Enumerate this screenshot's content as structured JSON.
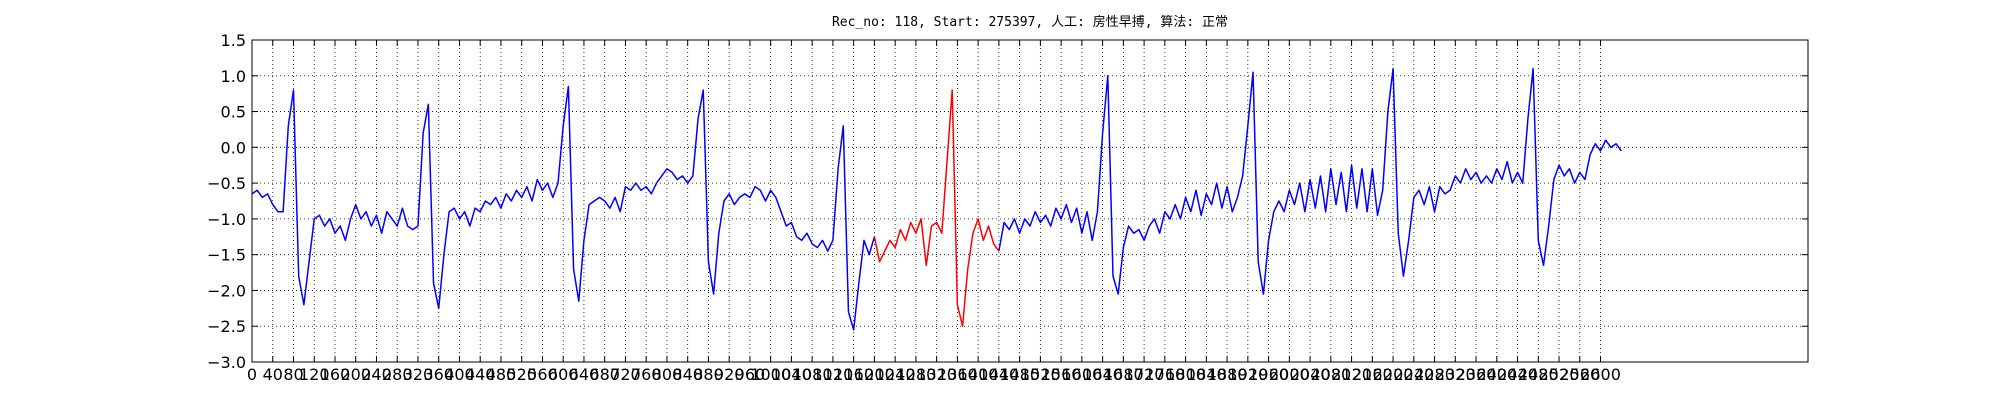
{
  "chart_data": {
    "type": "line",
    "title": "Rec_no: 118, Start: 275397, 人工: 房性早搏, 算法: 正常",
    "x": [
      0,
      10,
      20,
      30,
      40,
      50,
      60,
      70,
      80,
      90,
      100,
      110,
      120,
      130,
      140,
      150,
      160,
      170,
      180,
      190,
      200,
      210,
      220,
      230,
      240,
      250,
      260,
      270,
      280,
      290,
      300,
      310,
      320,
      330,
      340,
      350,
      360,
      370,
      380,
      390,
      400,
      410,
      420,
      430,
      440,
      450,
      460,
      470,
      480,
      490,
      500,
      510,
      520,
      530,
      540,
      550,
      560,
      570,
      580,
      590,
      600,
      610,
      620,
      630,
      640,
      650,
      660,
      670,
      680,
      690,
      700,
      710,
      720,
      730,
      740,
      750,
      760,
      770,
      780,
      790,
      800,
      810,
      820,
      830,
      840,
      850,
      860,
      870,
      880,
      890,
      900,
      910,
      920,
      930,
      940,
      950,
      960,
      970,
      980,
      990,
      1000,
      1010,
      1020,
      1030,
      1040,
      1050,
      1060,
      1070,
      1080,
      1090,
      1100,
      1110,
      1120,
      1130,
      1140,
      1150,
      1160,
      1170,
      1180,
      1190,
      1200,
      1210,
      1220,
      1230,
      1240,
      1250,
      1260,
      1270,
      1280,
      1290,
      1300,
      1310,
      1320,
      1330,
      1340,
      1350,
      1360,
      1370,
      1380,
      1390,
      1400,
      1410,
      1420,
      1430,
      1440,
      1450,
      1460,
      1470,
      1480,
      1490,
      1500,
      1510,
      1520,
      1530,
      1540,
      1550,
      1560,
      1570,
      1580,
      1590,
      1600,
      1610,
      1620,
      1630,
      1640,
      1650,
      1660,
      1670,
      1680,
      1690,
      1700,
      1710,
      1720,
      1730,
      1740,
      1750,
      1760,
      1770,
      1780,
      1790,
      1800,
      1810,
      1820,
      1830,
      1840,
      1850,
      1860,
      1870,
      1880,
      1890,
      1900,
      1910,
      1920,
      1930,
      1940,
      1950,
      1960,
      1970,
      1980,
      1990,
      2000,
      2010,
      2020,
      2030,
      2040,
      2050,
      2060,
      2070,
      2080,
      2090,
      2100,
      2110,
      2120,
      2130,
      2140,
      2150,
      2160,
      2170,
      2180,
      2190,
      2200,
      2210,
      2220,
      2230,
      2240,
      2250,
      2260,
      2270,
      2280,
      2290,
      2300,
      2310,
      2320,
      2330,
      2340,
      2350,
      2360,
      2370,
      2380,
      2390,
      2400,
      2410,
      2420,
      2430,
      2440,
      2450,
      2460,
      2470,
      2480,
      2490,
      2500,
      2510,
      2520,
      2530,
      2540,
      2550,
      2560,
      2570,
      2580,
      2590,
      2600,
      2610,
      2620,
      2630,
      2640
    ],
    "series": [
      {
        "color": "#0000ff",
        "values": [
          -0.65,
          -0.6,
          -0.7,
          -0.65,
          -0.8,
          -0.9,
          -0.9,
          0.3,
          0.8,
          -1.8,
          -2.2,
          -1.6,
          -1.0,
          -0.95,
          -1.1,
          -1.0,
          -1.2,
          -1.1,
          -1.3,
          -1.0,
          -0.8,
          -1.0,
          -0.9,
          -1.1,
          -0.95,
          -1.2,
          -0.9,
          -1.0,
          -1.1,
          -0.85,
          -1.1,
          -1.15,
          -1.1,
          0.2,
          0.6,
          -1.9,
          -2.25,
          -1.5,
          -0.9,
          -0.85,
          -1.0,
          -0.9,
          -1.1,
          -0.85,
          -0.9,
          -0.75,
          -0.8,
          -0.7,
          -0.85,
          -0.65,
          -0.75,
          -0.6,
          -0.7,
          -0.55,
          -0.75,
          -0.45,
          -0.6,
          -0.5,
          -0.7,
          -0.5,
          0.3,
          0.85,
          -1.7,
          -2.15,
          -1.3,
          -0.8,
          -0.75,
          -0.7,
          -0.75,
          -0.85,
          -0.7,
          -0.9,
          -0.55,
          -0.6,
          -0.5,
          -0.6,
          -0.55,
          -0.65,
          -0.5,
          -0.4,
          -0.3,
          -0.35,
          -0.45,
          -0.4,
          -0.5,
          -0.4,
          0.4,
          0.8,
          -1.6,
          -2.05,
          -1.2,
          -0.75,
          -0.65,
          -0.8,
          -0.7,
          -0.65,
          -0.7,
          -0.55,
          -0.6,
          -0.75,
          -0.6,
          -0.7,
          -0.9,
          -1.1,
          -1.05,
          -1.25,
          -1.3,
          -1.2,
          -1.35,
          -1.4,
          -1.3,
          -1.45,
          -1.3,
          -0.3,
          0.3,
          -2.3,
          -2.55,
          -1.9,
          -1.3,
          -1.5,
          -1.25,
          null,
          null,
          null,
          null,
          null,
          null,
          null,
          null,
          null,
          null,
          null,
          null,
          null,
          null,
          null,
          null,
          null,
          null,
          null,
          null,
          null,
          null,
          null,
          -1.45,
          -1.05,
          -1.15,
          -1.0,
          -1.2,
          -1.0,
          -1.1,
          -0.9,
          -1.05,
          -0.95,
          -1.1,
          -0.85,
          -1.0,
          -0.8,
          -1.05,
          -0.85,
          -1.2,
          -0.9,
          -1.3,
          -0.9,
          0.2,
          1.0,
          -1.8,
          -2.05,
          -1.4,
          -1.1,
          -1.2,
          -1.15,
          -1.3,
          -1.1,
          -1.0,
          -1.2,
          -0.9,
          -1.0,
          -0.8,
          -1.0,
          -0.7,
          -0.9,
          -0.6,
          -0.95,
          -0.65,
          -0.8,
          -0.5,
          -0.85,
          -0.55,
          -0.9,
          -0.7,
          -0.4,
          0.3,
          1.05,
          -1.6,
          -2.05,
          -1.3,
          -0.9,
          -0.75,
          -0.9,
          -0.6,
          -0.8,
          -0.5,
          -0.9,
          -0.45,
          -0.85,
          -0.4,
          -0.9,
          -0.3,
          -0.8,
          -0.35,
          -0.9,
          -0.25,
          -0.85,
          -0.3,
          -0.9,
          -0.3,
          -0.95,
          -0.6,
          0.5,
          1.1,
          -1.2,
          -1.8,
          -1.3,
          -0.7,
          -0.6,
          -0.8,
          -0.55,
          -0.9,
          -0.55,
          -0.65,
          -0.6,
          -0.4,
          -0.5,
          -0.3,
          -0.45,
          -0.35,
          -0.5,
          -0.4,
          -0.5,
          -0.3,
          -0.45,
          -0.2,
          -0.5,
          -0.35,
          -0.5,
          0.4,
          1.1,
          -1.3,
          -1.65,
          -1.1,
          -0.45,
          -0.25,
          -0.4,
          -0.3,
          -0.5,
          -0.35,
          -0.45,
          -0.1,
          0.05,
          -0.05,
          0.1,
          0.0,
          0.05,
          -0.05
        ]
      },
      {
        "color": "#ff0000",
        "values": [
          null,
          null,
          null,
          null,
          null,
          null,
          null,
          null,
          null,
          null,
          null,
          null,
          null,
          null,
          null,
          null,
          null,
          null,
          null,
          null,
          null,
          null,
          null,
          null,
          null,
          null,
          null,
          null,
          null,
          null,
          null,
          null,
          null,
          null,
          null,
          null,
          null,
          null,
          null,
          null,
          null,
          null,
          null,
          null,
          null,
          null,
          null,
          null,
          null,
          null,
          null,
          null,
          null,
          null,
          null,
          null,
          null,
          null,
          null,
          null,
          null,
          null,
          null,
          null,
          null,
          null,
          null,
          null,
          null,
          null,
          null,
          null,
          null,
          null,
          null,
          null,
          null,
          null,
          null,
          null,
          null,
          null,
          null,
          null,
          null,
          null,
          null,
          null,
          null,
          null,
          null,
          null,
          null,
          null,
          null,
          null,
          null,
          null,
          null,
          null,
          null,
          null,
          null,
          null,
          null,
          null,
          null,
          null,
          null,
          null,
          null,
          null,
          null,
          null,
          null,
          null,
          null,
          null,
          null,
          null,
          -1.25,
          -1.6,
          -1.45,
          -1.3,
          -1.4,
          -1.15,
          -1.3,
          -1.05,
          -1.2,
          -1.0,
          -1.65,
          -1.1,
          -1.05,
          -1.2,
          -0.2,
          0.8,
          -2.2,
          -2.5,
          -1.7,
          -1.2,
          -1.0,
          -1.3,
          -1.1,
          -1.35,
          -1.45,
          null,
          null,
          null,
          null,
          null,
          null,
          null,
          null,
          null,
          null,
          null,
          null,
          null,
          null,
          null,
          null,
          null,
          null,
          null,
          null,
          null,
          null,
          null,
          null,
          null,
          null,
          null,
          null,
          null,
          null,
          null,
          null,
          null,
          null,
          null,
          null,
          null,
          null,
          null,
          null,
          null,
          null,
          null,
          null,
          null,
          null,
          null,
          null,
          null,
          null,
          null,
          null,
          null,
          null,
          null,
          null,
          null,
          null,
          null,
          null,
          null,
          null,
          null,
          null,
          null,
          null,
          null,
          null,
          null,
          null,
          null,
          null,
          null,
          null,
          null,
          null,
          null,
          null,
          null,
          null,
          null,
          null,
          null,
          null,
          null,
          null,
          null,
          null,
          null,
          null,
          null,
          null,
          null,
          null,
          null,
          null,
          null,
          null,
          null,
          null,
          null,
          null,
          null,
          null,
          null,
          null,
          null,
          null,
          null,
          null,
          null,
          null,
          null,
          null,
          null,
          null,
          null,
          null,
          null,
          null
        ]
      }
    ],
    "xlim": [
      0,
      3000
    ],
    "xticks": [
      0,
      40,
      80,
      120,
      160,
      200,
      240,
      280,
      320,
      360,
      400,
      440,
      480,
      520,
      560,
      600,
      640,
      680,
      720,
      760,
      800,
      840,
      880,
      920,
      960,
      1000,
      1040,
      1080,
      1120,
      1160,
      1200,
      1240,
      1280,
      1320,
      1360,
      1400,
      1440,
      1480,
      1520,
      1560,
      1600,
      1640,
      1680,
      1720,
      1760,
      1800,
      1840,
      1880,
      1920,
      1960,
      2000,
      2040,
      2080,
      2120,
      2160,
      2200,
      2240,
      2280,
      2320,
      2360,
      2400,
      2440,
      2480,
      2520,
      2560,
      2600
    ],
    "ylim": [
      -3.0,
      1.5
    ],
    "yticks": [
      {
        "value": -3.0,
        "label": "−3.0"
      },
      {
        "value": -2.5,
        "label": "−2.5"
      },
      {
        "value": -2.0,
        "label": "−2.0"
      },
      {
        "value": -1.5,
        "label": "−1.5"
      },
      {
        "value": -1.0,
        "label": "−1.0"
      },
      {
        "value": -0.5,
        "label": "−0.5"
      },
      {
        "value": 0.0,
        "label": "0.0"
      },
      0.5,
      {
        "value": 1.0,
        "label": "1.0"
      },
      1.5
    ],
    "grid": true
  }
}
